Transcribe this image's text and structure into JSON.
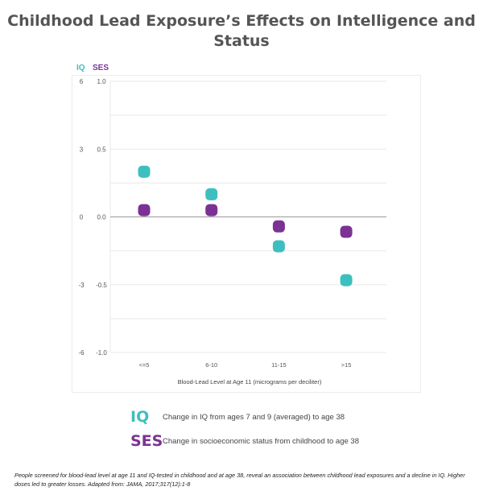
{
  "title": "Childhood Lead Exposure’s Effects on Intelligence and Status",
  "axis_headers": {
    "iq": "IQ",
    "ses": "SES"
  },
  "legend": [
    {
      "key": "IQ",
      "text": "Change in IQ from ages 7 and 9 (averaged) to age 38"
    },
    {
      "key": "SES",
      "text": "Change in socioeconomic status from childhood to age 38"
    }
  ],
  "caption": "People screened for blood-lead level at age 11 and IQ-tested in childhood and at age 38, reveal an association between childhood lead exposures and a decline in IQ. Higher doses led to greater losses. Adapted from: JAMA, 2017;317(12):1-8",
  "colors": {
    "iq": "#3ebfbf",
    "ses": "#7b3294",
    "grid": "#e9e9e9",
    "zero": "#9a9a9a"
  },
  "chart_data": {
    "type": "scatter",
    "categories": [
      "<=5",
      "6-10",
      "11-15",
      ">15"
    ],
    "xlabel": "Blood-Lead Level at Age 11 (micrograms per deciliter)",
    "y_left": {
      "label": "IQ",
      "range": [
        -6,
        6
      ],
      "ticks": [
        6,
        3,
        0,
        -3,
        -6
      ]
    },
    "y_right": {
      "label": "SES",
      "range": [
        -1.0,
        1.0
      ],
      "ticks": [
        "1.0",
        "0.5",
        "0.0",
        "-0.5",
        "-1.0"
      ]
    },
    "grid": true,
    "series": [
      {
        "name": "IQ",
        "axis": "left",
        "values": [
          2.0,
          1.0,
          -1.3,
          -2.8
        ]
      },
      {
        "name": "SES",
        "axis": "right",
        "values": [
          0.05,
          0.05,
          -0.07,
          -0.11
        ]
      }
    ]
  }
}
